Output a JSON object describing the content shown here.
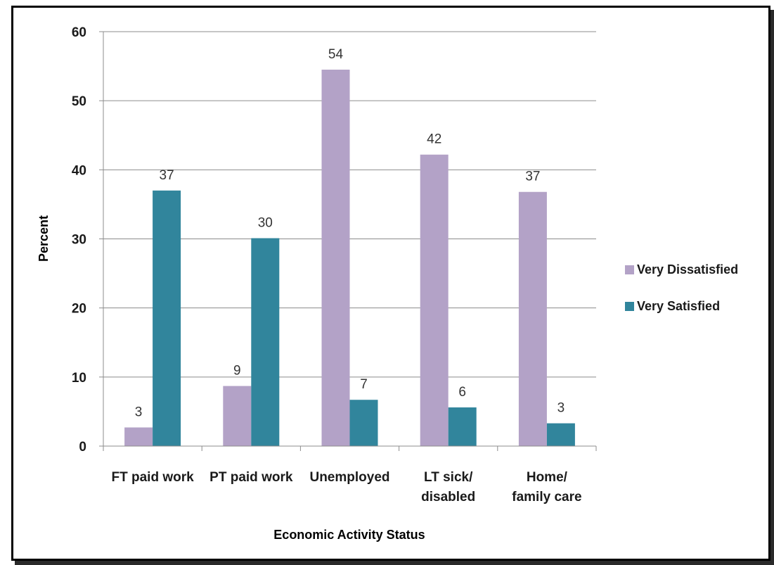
{
  "chart_data": {
    "type": "bar",
    "xlabel": "Economic Activity Status",
    "ylabel": "Percent",
    "ylim": [
      0,
      60
    ],
    "yticks": [
      0,
      10,
      20,
      30,
      40,
      50,
      60
    ],
    "grid": true,
    "legend_position": "right",
    "categories": [
      [
        "FT paid work"
      ],
      [
        "PT paid work"
      ],
      [
        "Unemployed"
      ],
      [
        "LT sick/",
        "disabled"
      ],
      [
        "Home/",
        "family care"
      ]
    ],
    "series": [
      {
        "name": "Very Dissatisfied",
        "color": "#b3a2c7",
        "values": [
          2.7,
          8.7,
          54.5,
          42.2,
          36.8
        ],
        "labels": [
          "3",
          "9",
          "54",
          "42",
          "37"
        ]
      },
      {
        "name": "Very Satisfied",
        "color": "#31859c",
        "values": [
          37.0,
          30.1,
          6.7,
          5.6,
          3.3
        ],
        "labels": [
          "37",
          "30",
          "7",
          "6",
          "3"
        ]
      }
    ]
  }
}
